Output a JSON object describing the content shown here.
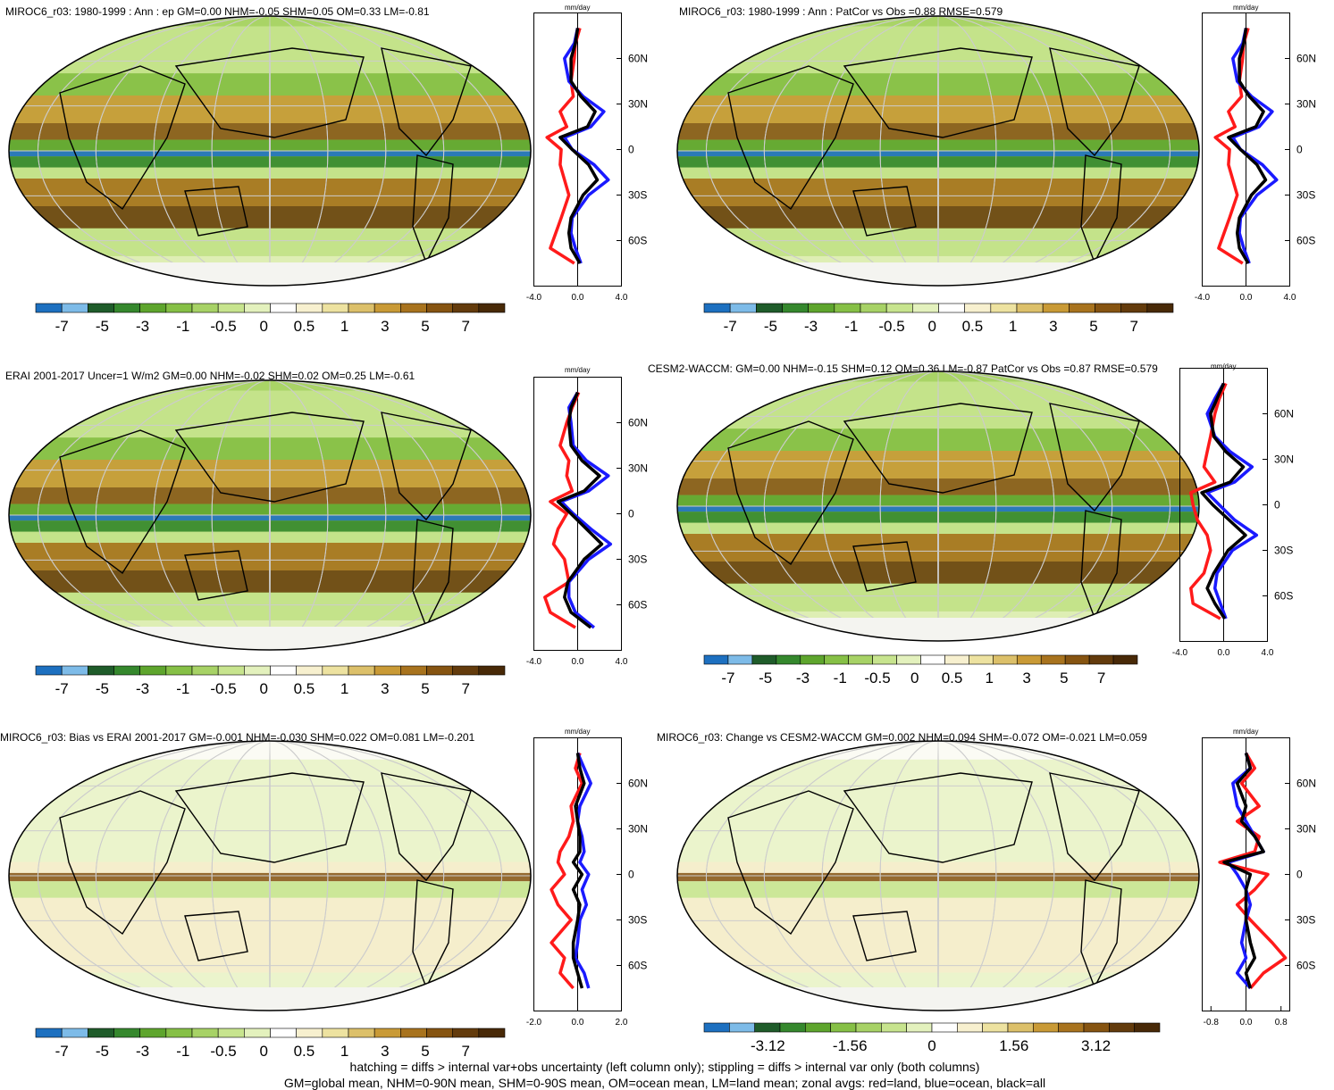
{
  "colors": {
    "colorbar": [
      "#1d70c0",
      "#7dbbe8",
      "#1f5c2a",
      "#35882d",
      "#5ea52d",
      "#86c046",
      "#a7d266",
      "#c7e48e",
      "#e3f1bd",
      "#ffffff",
      "#f7f0cf",
      "#ede2a0",
      "#dcc06a",
      "#c99a36",
      "#a8731e",
      "#865411",
      "#633b0c",
      "#482907"
    ],
    "land": "#1c8a6a",
    "ocean": "#1f3cf0",
    "all": "#000000"
  },
  "units": "mm/day",
  "lat_ticks": [
    "60N",
    "30N",
    "0",
    "30S",
    "60S"
  ],
  "footer": {
    "line1": "hatching = diffs > internal var+obs uncertainty (left column only); stippling = diffs > internal var only (both columns)",
    "line2": "GM=global mean, NHM=0-90N mean, SHM=0-90S mean, OM=ocean mean, LM=land mean; zonal avgs: red=land, blue=ocean, black=all"
  },
  "chart_data": [
    {
      "type": "heatmap",
      "title": "MIROC6_r03: 1980-1999 : Ann : ep GM=0.00 NHM=-0.05 SHM=0.05 OM=0.33 LM=-0.81",
      "colorbar_labels": [
        "-7",
        "-5",
        "-3",
        "-1",
        "-0.5",
        "0",
        "0.5",
        "1",
        "3",
        "5",
        "7"
      ],
      "zonal_xticks": [
        "-4.0",
        "0.0",
        "4.0"
      ],
      "zonal_xlim": [
        -4,
        4
      ],
      "series": [
        {
          "name": "red",
          "lat": [
            80,
            70,
            60,
            45,
            35,
            25,
            15,
            8,
            0,
            -10,
            -20,
            -30,
            -45,
            -55,
            -65,
            -75
          ],
          "values": [
            0.2,
            -0.2,
            -0.3,
            -0.6,
            -0.4,
            -1.6,
            -1.0,
            -2.8,
            -1.5,
            -1.6,
            -1.2,
            -0.8,
            -1.5,
            -2.0,
            -2.5,
            -0.3
          ]
        },
        {
          "name": "blue",
          "lat": [
            80,
            70,
            60,
            45,
            35,
            25,
            15,
            8,
            0,
            -10,
            -20,
            -30,
            -45,
            -55,
            -65,
            -75
          ],
          "values": [
            0.0,
            -0.3,
            -1.2,
            -0.8,
            0.5,
            2.4,
            1.2,
            -1.2,
            -0.5,
            1.5,
            2.8,
            1.0,
            -0.5,
            -0.6,
            -0.2,
            0.3
          ]
        },
        {
          "name": "black",
          "lat": [
            80,
            70,
            60,
            45,
            35,
            25,
            15,
            8,
            0,
            -10,
            -20,
            -30,
            -45,
            -55,
            -65,
            -75
          ],
          "values": [
            0.0,
            -0.2,
            -0.6,
            -0.6,
            0.3,
            1.6,
            0.9,
            -1.6,
            -0.5,
            1.0,
            1.8,
            0.5,
            -0.6,
            -0.8,
            -0.6,
            0.2
          ]
        }
      ]
    },
    {
      "type": "heatmap",
      "title": "MIROC6_r03: 1980-1999 : Ann : PatCor vs Obs =0.88 RMSE=0.579",
      "colorbar_labels": [
        "-7",
        "-5",
        "-3",
        "-1",
        "-0.5",
        "0",
        "0.5",
        "1",
        "3",
        "5",
        "7"
      ],
      "zonal_xticks": [
        "-4.0",
        "0.0",
        "4.0"
      ],
      "zonal_xlim": [
        -4,
        4
      ],
      "series": [
        {
          "name": "red",
          "lat": [
            80,
            70,
            60,
            45,
            35,
            25,
            15,
            8,
            0,
            -10,
            -20,
            -30,
            -45,
            -55,
            -65,
            -75
          ],
          "values": [
            0.2,
            -0.2,
            -0.3,
            -0.6,
            -0.4,
            -1.6,
            -1.0,
            -2.8,
            -1.5,
            -1.6,
            -1.2,
            -0.8,
            -1.5,
            -2.0,
            -2.5,
            -0.3
          ]
        },
        {
          "name": "blue",
          "lat": [
            80,
            70,
            60,
            45,
            35,
            25,
            15,
            8,
            0,
            -10,
            -20,
            -30,
            -45,
            -55,
            -65,
            -75
          ],
          "values": [
            0.0,
            -0.3,
            -1.2,
            -0.8,
            0.5,
            2.4,
            1.2,
            -1.2,
            -0.5,
            1.5,
            2.8,
            1.0,
            -0.5,
            -0.6,
            -0.2,
            0.3
          ]
        },
        {
          "name": "black",
          "lat": [
            80,
            70,
            60,
            45,
            35,
            25,
            15,
            8,
            0,
            -10,
            -20,
            -30,
            -45,
            -55,
            -65,
            -75
          ],
          "values": [
            0.0,
            -0.2,
            -0.6,
            -0.6,
            0.3,
            1.6,
            0.9,
            -1.6,
            -0.5,
            1.0,
            1.8,
            0.5,
            -0.6,
            -0.8,
            -0.6,
            0.2
          ]
        }
      ]
    },
    {
      "type": "heatmap",
      "title": "ERAI 2001-2017 Uncer=1 W/m2 GM=0.00 NHM=-0.02 SHM=0.02 OM=0.25 LM=-0.61",
      "colorbar_labels": [
        "-7",
        "-5",
        "-3",
        "-1",
        "-0.5",
        "0",
        "0.5",
        "1",
        "3",
        "5",
        "7"
      ],
      "zonal_xticks": [
        "-4.0",
        "0.0",
        "4.0"
      ],
      "zonal_xlim": [
        -4,
        4
      ],
      "series": [
        {
          "name": "red",
          "lat": [
            80,
            70,
            60,
            45,
            35,
            25,
            15,
            8,
            0,
            -10,
            -20,
            -30,
            -45,
            -55,
            -65,
            -75
          ],
          "values": [
            0.1,
            -0.5,
            -1.0,
            -1.6,
            -0.8,
            -1.0,
            -0.5,
            -2.5,
            -1.0,
            -1.8,
            -2.2,
            -1.2,
            -0.8,
            -3.0,
            -2.5,
            -0.2
          ]
        },
        {
          "name": "blue",
          "lat": [
            80,
            70,
            60,
            45,
            35,
            25,
            15,
            8,
            0,
            -10,
            -20,
            -30,
            -45,
            -55,
            -65,
            -75
          ],
          "values": [
            0.0,
            -0.8,
            -0.6,
            -0.4,
            0.8,
            2.8,
            1.0,
            -1.5,
            -0.4,
            1.2,
            3.0,
            1.0,
            -0.8,
            -0.8,
            -0.2,
            1.5
          ]
        },
        {
          "name": "black",
          "lat": [
            80,
            70,
            60,
            45,
            35,
            25,
            15,
            8,
            0,
            -10,
            -20,
            -30,
            -45,
            -55,
            -65,
            -75
          ],
          "values": [
            0.0,
            -0.6,
            -0.8,
            -0.6,
            0.4,
            2.0,
            0.6,
            -1.8,
            -0.6,
            0.8,
            2.2,
            0.6,
            -0.9,
            -1.2,
            -0.6,
            1.2
          ]
        }
      ]
    },
    {
      "type": "heatmap",
      "title": "CESM2-WACCM: GM=0.00 NHM=-0.15 SHM=0.12 OM=0.36 LM=-0.87 PatCor vs Obs =0.87 RMSE=0.579",
      "colorbar_labels": [
        "-7",
        "-5",
        "-3",
        "-1",
        "-0.5",
        "0",
        "0.5",
        "1",
        "3",
        "5",
        "7"
      ],
      "zonal_xticks": [
        "-4.0",
        "0.0",
        "4.0"
      ],
      "zonal_xlim": [
        -4,
        4
      ],
      "series": [
        {
          "name": "red",
          "lat": [
            80,
            70,
            60,
            45,
            35,
            25,
            15,
            8,
            0,
            -10,
            -20,
            -30,
            -45,
            -55,
            -65,
            -75
          ],
          "values": [
            0.2,
            -0.4,
            -0.8,
            -1.2,
            -1.5,
            -1.8,
            -0.8,
            -3.0,
            -2.8,
            -2.4,
            -1.5,
            -1.2,
            -1.8,
            -3.0,
            -2.8,
            -0.3
          ]
        },
        {
          "name": "blue",
          "lat": [
            80,
            70,
            60,
            45,
            35,
            25,
            15,
            8,
            0,
            -10,
            -20,
            -30,
            -45,
            -55,
            -65,
            -75
          ],
          "values": [
            0.0,
            -0.8,
            -1.5,
            -0.8,
            0.6,
            2.6,
            1.0,
            -1.5,
            -0.4,
            1.0,
            3.0,
            0.8,
            -0.6,
            -0.8,
            -0.3,
            0.2
          ]
        },
        {
          "name": "black",
          "lat": [
            80,
            70,
            60,
            45,
            35,
            25,
            15,
            8,
            0,
            -10,
            -20,
            -30,
            -45,
            -55,
            -65,
            -75
          ],
          "values": [
            0.0,
            -0.6,
            -1.2,
            -0.9,
            0.2,
            1.8,
            0.6,
            -2.0,
            -1.0,
            0.5,
            2.0,
            0.4,
            -0.9,
            -1.5,
            -0.8,
            0.1
          ]
        }
      ]
    },
    {
      "type": "heatmap",
      "title": "MIROC6_r03: Bias vs ERAI 2001-2017 GM=-0.001 NHM=-0.030 SHM=0.022 OM=0.081 LM=-0.201",
      "colorbar_labels": [
        "-7",
        "-5",
        "-3",
        "-1",
        "-0.5",
        "0",
        "0.5",
        "1",
        "3",
        "5",
        "7"
      ],
      "zonal_xticks": [
        "-2.0",
        "0.0",
        "2.0"
      ],
      "zonal_xlim": [
        -2,
        2
      ],
      "series": [
        {
          "name": "red",
          "lat": [
            80,
            70,
            60,
            45,
            35,
            25,
            15,
            8,
            0,
            -10,
            -20,
            -30,
            -45,
            -55,
            -65,
            -75
          ],
          "values": [
            0.1,
            -0.1,
            0.2,
            -0.3,
            -0.2,
            -0.4,
            -0.8,
            -0.9,
            -0.6,
            -1.2,
            -0.9,
            -0.3,
            -1.2,
            -0.6,
            -0.8,
            -0.2
          ]
        },
        {
          "name": "blue",
          "lat": [
            80,
            70,
            60,
            45,
            35,
            25,
            15,
            8,
            0,
            -10,
            -20,
            -30,
            -45,
            -55,
            -65,
            -75
          ],
          "values": [
            0.0,
            0.3,
            0.6,
            0.1,
            0.0,
            0.2,
            0.3,
            0.1,
            0.5,
            0.2,
            0.4,
            0.1,
            0.0,
            -0.1,
            0.3,
            0.5
          ]
        },
        {
          "name": "black",
          "lat": [
            80,
            70,
            60,
            45,
            35,
            25,
            15,
            8,
            0,
            -10,
            -20,
            -30,
            -45,
            -55,
            -65,
            -75
          ],
          "values": [
            0.0,
            0.1,
            0.3,
            -0.1,
            0.0,
            0.1,
            0.1,
            -0.2,
            0.2,
            -0.2,
            0.1,
            0.0,
            -0.2,
            -0.2,
            0.0,
            0.2
          ]
        }
      ]
    },
    {
      "type": "heatmap",
      "title": "MIROC6_r03: Change vs CESM2-WACCM GM=0.002 NHM=0.094 SHM=-0.072 OM=-0.021 LM=0.059",
      "colorbar_labels": [
        "-3.12",
        "-1.56",
        "0",
        "1.56",
        "3.12"
      ],
      "zonal_xticks": [
        "-0.8",
        "0.0",
        "0.8"
      ],
      "zonal_xlim": [
        -1.0,
        1.0
      ],
      "series": [
        {
          "name": "red",
          "lat": [
            80,
            70,
            60,
            45,
            35,
            25,
            15,
            8,
            0,
            -10,
            -20,
            -30,
            -45,
            -55,
            -65,
            -75
          ],
          "values": [
            0.0,
            0.2,
            -0.1,
            0.3,
            -0.2,
            0.3,
            0.2,
            -0.6,
            0.5,
            0.2,
            -0.2,
            0.1,
            0.6,
            0.9,
            0.4,
            0.1
          ]
        },
        {
          "name": "blue",
          "lat": [
            80,
            70,
            60,
            45,
            35,
            25,
            15,
            8,
            0,
            -10,
            -20,
            -30,
            -45,
            -55,
            -65,
            -75
          ],
          "values": [
            0.0,
            0.1,
            -0.3,
            -0.2,
            0.0,
            0.2,
            0.4,
            -0.4,
            -0.2,
            0.0,
            0.1,
            0.0,
            -0.1,
            0.0,
            -0.2,
            0.1
          ]
        },
        {
          "name": "black",
          "lat": [
            80,
            70,
            60,
            45,
            35,
            25,
            15,
            8,
            0,
            -10,
            -20,
            -30,
            -45,
            -55,
            -65,
            -75
          ],
          "values": [
            0.0,
            0.1,
            -0.2,
            0.0,
            -0.1,
            0.2,
            0.4,
            -0.5,
            0.1,
            0.0,
            0.0,
            0.0,
            0.1,
            0.2,
            0.0,
            0.1
          ]
        }
      ]
    }
  ]
}
